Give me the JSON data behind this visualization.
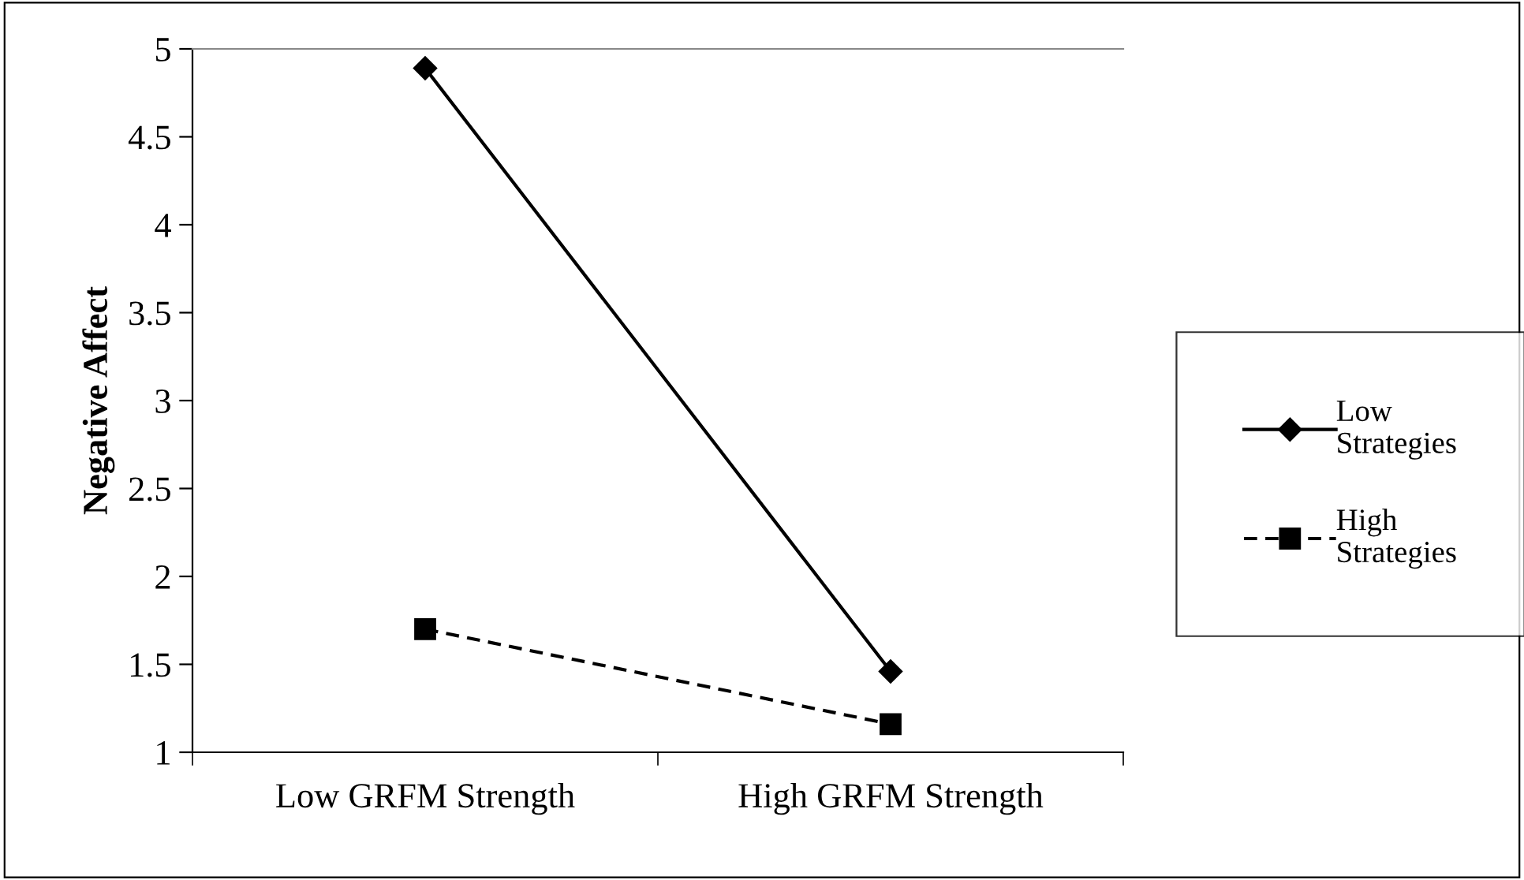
{
  "chart_data": {
    "type": "line",
    "ylabel": "Negative Affect",
    "categories": [
      "Low GRFM Strength",
      "High GRFM Strength"
    ],
    "series": [
      {
        "name": "Low Strategies",
        "color": "#000000",
        "values": [
          4.89,
          1.46
        ],
        "marker": "diamond",
        "line_style": "solid"
      },
      {
        "name": "High Strategies",
        "color": "#000000",
        "values": [
          1.7,
          1.16
        ],
        "marker": "square",
        "line_style": "dashed"
      }
    ],
    "ylim": [
      1,
      5
    ],
    "yticks": [
      1,
      1.5,
      2,
      2.5,
      3,
      3.5,
      4,
      4.5,
      5
    ],
    "legend": "right"
  }
}
